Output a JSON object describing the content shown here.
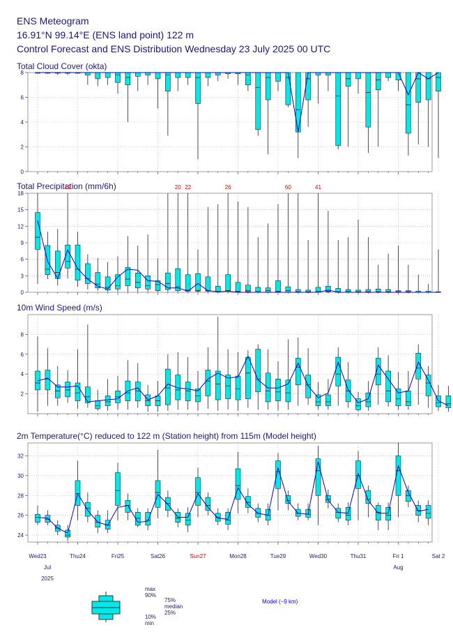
{
  "header": {
    "line1": "ENS Meteogram",
    "line2": "16.91°N 99.14°E (ENS land point) 122 m",
    "line3": "Control Forecast and ENS Distribution Wednesday 23 July 2025 00 UTC"
  },
  "colors": {
    "box": "#00e8e8",
    "line": "#0000cc",
    "text": "#1a1a6e",
    "sunday": "#e00000",
    "grid": "#999999"
  },
  "chart_data": [
    {
      "type": "boxplot",
      "title": "Total Cloud Cover (okta)",
      "ylim": [
        0,
        8
      ],
      "yticks": [
        0,
        2,
        4,
        6,
        8
      ],
      "boxes": [
        [
          7.9,
          8,
          8,
          8,
          8
        ],
        [
          7.9,
          8,
          8,
          8,
          8
        ],
        [
          7.8,
          8,
          8,
          8,
          8
        ],
        [
          7.8,
          8,
          8,
          8,
          8
        ],
        [
          7.9,
          8,
          8,
          8,
          8
        ],
        [
          7,
          7.8,
          8,
          8,
          8
        ],
        [
          6.9,
          7.5,
          8,
          8,
          8
        ],
        [
          7,
          7.6,
          8,
          8,
          8
        ],
        [
          6.3,
          7.2,
          7.8,
          8,
          8
        ],
        [
          4,
          7,
          7.6,
          8,
          8
        ],
        [
          6.5,
          7.7,
          8,
          8,
          8
        ],
        [
          7,
          7.8,
          8,
          8,
          8
        ],
        [
          5.1,
          7.5,
          8,
          8,
          8
        ],
        [
          2.9,
          6.5,
          7.8,
          8,
          8
        ],
        [
          6.5,
          7.6,
          8,
          8,
          8
        ],
        [
          7,
          7.6,
          8,
          8,
          8
        ],
        [
          1,
          5.5,
          7.6,
          8,
          8
        ],
        [
          6.9,
          7.6,
          8,
          8,
          8
        ],
        [
          7.3,
          7.8,
          8,
          8,
          8
        ],
        [
          7.5,
          7.9,
          8,
          8,
          8
        ],
        [
          7,
          7.9,
          8,
          8,
          8
        ],
        [
          6.5,
          7,
          7.8,
          8,
          8
        ],
        [
          2.9,
          3.4,
          6.8,
          8,
          8
        ],
        [
          1.4,
          5.8,
          7.6,
          8,
          8
        ],
        [
          6.5,
          7.3,
          8,
          8,
          8
        ],
        [
          5.2,
          5.4,
          7.6,
          8,
          8
        ],
        [
          1.1,
          3.2,
          5,
          8,
          8
        ],
        [
          3.6,
          5.8,
          7.5,
          8,
          8
        ],
        [
          5.5,
          7.8,
          8,
          8,
          8
        ],
        [
          6.5,
          7.8,
          8,
          8,
          8
        ],
        [
          1.8,
          2.1,
          6.1,
          8,
          8
        ],
        [
          2,
          6.9,
          7.5,
          8,
          8
        ],
        [
          6.3,
          7.5,
          8,
          8,
          8
        ],
        [
          1.5,
          3.6,
          6.4,
          8,
          8
        ],
        [
          2,
          6.6,
          7.4,
          8,
          8
        ],
        [
          7.3,
          7.6,
          8,
          8,
          8
        ],
        [
          6.5,
          7.4,
          8,
          8,
          8
        ],
        [
          1.3,
          3.1,
          5.4,
          8,
          8
        ],
        [
          2.2,
          5.6,
          7.5,
          8,
          8
        ],
        [
          2,
          5.8,
          7.5,
          8,
          8
        ],
        [
          1.1,
          6.5,
          7.6,
          8,
          8
        ]
      ],
      "control": [
        8,
        8,
        8,
        8,
        8,
        8,
        8,
        8,
        8,
        8,
        8,
        8,
        8,
        8,
        8,
        8,
        8,
        8,
        8,
        8,
        8,
        8,
        8,
        8,
        8,
        8,
        3.2,
        8,
        8,
        8,
        8,
        8,
        8,
        8,
        8,
        8,
        8,
        6.2,
        8,
        7.5,
        8
      ]
    },
    {
      "type": "boxplot",
      "title": "Total Precipitation (mm/6h)",
      "ylim": [
        0,
        18
      ],
      "yticks": [
        0,
        3,
        6,
        9,
        12,
        15,
        18
      ],
      "exceed_labels": [
        {
          "index": 3,
          "text": "19"
        },
        {
          "index": 14,
          "text": "20"
        },
        {
          "index": 15,
          "text": "22"
        },
        {
          "index": 19,
          "text": "26"
        },
        {
          "index": 25,
          "text": "60"
        },
        {
          "index": 28,
          "text": "41"
        }
      ],
      "boxes": [
        [
          1.5,
          7.8,
          10,
          14.5,
          18
        ],
        [
          2.4,
          3.2,
          4.2,
          8.5,
          11
        ],
        [
          1.2,
          2.5,
          3.6,
          7.5,
          11.5
        ],
        [
          2.5,
          4.4,
          5.6,
          8.6,
          18
        ],
        [
          1,
          2.2,
          4.2,
          8.6,
          11
        ],
        [
          0.5,
          1.6,
          2.5,
          5.2,
          6.9
        ],
        [
          0.3,
          0.8,
          1.5,
          3.6,
          6.2
        ],
        [
          0.1,
          0.4,
          0.9,
          2.8,
          5.5
        ],
        [
          0.1,
          0.6,
          1.2,
          3.2,
          6.5
        ],
        [
          0.1,
          1.2,
          2.4,
          4.5,
          10.2
        ],
        [
          0.1,
          0.8,
          1.8,
          3.5,
          8.5
        ],
        [
          0.1,
          0.6,
          1.2,
          3,
          10.5
        ],
        [
          0.1,
          0.3,
          1.4,
          2.1,
          6.2
        ],
        [
          0.1,
          0.5,
          1.6,
          3.5,
          18
        ],
        [
          0.1,
          0.3,
          1,
          4.3,
          18
        ],
        [
          0.1,
          0.2,
          0.4,
          3.2,
          18
        ],
        [
          0,
          0.2,
          0.3,
          3.4,
          7.8
        ],
        [
          0,
          0.2,
          0.3,
          2.8,
          15.5
        ],
        [
          0,
          0.1,
          0.2,
          1.1,
          16
        ],
        [
          0,
          0.2,
          0.3,
          3.2,
          18
        ],
        [
          0,
          0.1,
          0.2,
          1.8,
          16.5
        ],
        [
          0,
          0.1,
          0.3,
          1.3,
          15.5
        ],
        [
          0,
          0,
          0.2,
          0.9,
          10
        ],
        [
          0,
          0,
          0.3,
          0.8,
          12.5
        ],
        [
          0,
          0.1,
          0.2,
          2.1,
          16
        ],
        [
          0,
          0,
          0.3,
          1,
          18
        ],
        [
          0,
          0,
          0.1,
          0.5,
          18
        ],
        [
          0,
          0,
          0.1,
          0.4,
          9.5
        ],
        [
          0,
          0,
          0.2,
          0.9,
          18
        ],
        [
          0,
          0.1,
          0.2,
          1.1,
          14.8
        ],
        [
          0,
          0,
          0.1,
          0.7,
          9.5
        ],
        [
          0,
          0,
          0.2,
          0.5,
          10
        ],
        [
          0,
          0,
          0.1,
          0.4,
          13.2
        ],
        [
          0,
          0,
          0.1,
          0.5,
          10
        ],
        [
          0,
          0,
          0.1,
          0.6,
          5
        ],
        [
          0,
          0,
          0.1,
          0.5,
          7
        ],
        [
          0,
          0,
          0.1,
          0.3,
          8.5
        ],
        [
          0,
          0,
          0.1,
          0.3,
          5
        ],
        [
          0,
          0,
          0,
          0.2,
          3.2
        ],
        [
          0,
          0,
          0,
          0.2,
          1.5
        ],
        [
          0,
          0,
          0,
          0.1,
          7.8
        ]
      ],
      "control": [
        13,
        5.6,
        2.5,
        7.7,
        4.3,
        2.4,
        1.1,
        0.6,
        2.8,
        4.2,
        4,
        2.1,
        2,
        0.8,
        0.8,
        0.2,
        1.6,
        0.3,
        0.1,
        0.2,
        0,
        0,
        0,
        0,
        0,
        0,
        0,
        0,
        0,
        0.4,
        0,
        0,
        0,
        0,
        0,
        0,
        0,
        0,
        0,
        0,
        0
      ]
    },
    {
      "type": "boxplot",
      "title": "10m Wind Speed (m/s)",
      "ylim": [
        0,
        10
      ],
      "yticks": [
        2,
        4,
        6,
        8
      ],
      "boxes": [
        [
          0.2,
          2.4,
          3.1,
          4.3,
          7.8
        ],
        [
          0.8,
          2.4,
          3.5,
          4.4,
          6.6
        ],
        [
          0.8,
          1.6,
          2.3,
          2.9,
          4.8
        ],
        [
          1.1,
          1.7,
          2.4,
          3.2,
          4.4
        ],
        [
          0.5,
          1.3,
          2.1,
          3.1,
          6.5
        ],
        [
          0.6,
          1.1,
          1.7,
          2.7,
          9
        ],
        [
          0.3,
          0.5,
          0.8,
          1.3,
          2.4
        ],
        [
          0.3,
          0.8,
          1.2,
          1.8,
          3.5
        ],
        [
          0.4,
          1.1,
          1.7,
          2.3,
          3.8
        ],
        [
          0.4,
          1.3,
          2.1,
          3.3,
          5.4
        ],
        [
          0.6,
          1.3,
          2.3,
          3.2,
          5.1
        ],
        [
          0.2,
          0.8,
          1.3,
          1.9,
          2.9
        ],
        [
          0.2,
          0.8,
          1.3,
          1.8,
          3.3
        ],
        [
          0.3,
          0.9,
          2.6,
          4.5,
          6
        ],
        [
          0.4,
          1.4,
          2.4,
          3.9,
          6.2
        ],
        [
          0.4,
          1.3,
          2.3,
          3.2,
          5.7
        ],
        [
          0.3,
          1.2,
          1.8,
          2.5,
          4.3
        ],
        [
          0.5,
          1.8,
          3.3,
          4.4,
          6.7
        ],
        [
          0.3,
          1.4,
          3,
          4.3,
          9.8
        ],
        [
          0.4,
          1.5,
          2.8,
          3.9,
          6.5
        ],
        [
          0.3,
          1.4,
          2.5,
          3.8,
          6.2
        ],
        [
          0.6,
          1.5,
          4.1,
          5.7,
          6.4
        ],
        [
          0.4,
          2.2,
          3.5,
          6.5,
          7
        ],
        [
          0.4,
          1.2,
          2.3,
          4.1,
          6.5
        ],
        [
          0.3,
          1.3,
          2.2,
          3.5,
          5.3
        ],
        [
          0.4,
          1.2,
          2.1,
          3.4,
          7.5
        ],
        [
          0.8,
          2.9,
          4.7,
          5.6,
          7.7
        ],
        [
          0.9,
          1.6,
          2.9,
          3.9,
          6.6
        ],
        [
          0.4,
          0.8,
          1.2,
          1.9,
          3.2
        ],
        [
          0.4,
          0.8,
          1.2,
          1.9,
          3.5
        ],
        [
          0.8,
          2.8,
          4,
          5.7,
          6.7
        ],
        [
          0.6,
          1.2,
          2.3,
          3.4,
          5.2
        ],
        [
          0.2,
          0.4,
          0.8,
          1.5,
          2.2
        ],
        [
          0.3,
          0.7,
          1.2,
          2.1,
          3.3
        ],
        [
          0.9,
          2.9,
          4,
          5.6,
          6.7
        ],
        [
          0.7,
          1.2,
          2.3,
          4.3,
          5.9
        ],
        [
          0.4,
          0.8,
          1.5,
          2.5,
          4.2
        ],
        [
          0.4,
          0.8,
          1.2,
          2.3,
          4.3
        ],
        [
          0.9,
          3.5,
          4.6,
          6.1,
          7
        ],
        [
          0.6,
          1.8,
          3.1,
          3.9,
          4.8
        ],
        [
          0.3,
          0.7,
          1.1,
          1.8,
          2.9
        ],
        [
          0.2,
          0.6,
          1,
          1.8,
          2.8
        ]
      ],
      "control": [
        3.3,
        3.6,
        2.7,
        2.7,
        2.8,
        1.2,
        1.3,
        1.4,
        1.5,
        2.3,
        2.6,
        1.4,
        1.8,
        3,
        2.6,
        2.5,
        2.3,
        3.5,
        4.1,
        3.6,
        3.7,
        5.8,
        3.4,
        2.6,
        2.6,
        3,
        5.1,
        2.8,
        1.6,
        2.1,
        5.2,
        2.4,
        1.1,
        1.5,
        4.9,
        3.5,
        2.1,
        2.3,
        5.2,
        3.4,
        1.3,
        0.8
      ]
    },
    {
      "type": "boxplot",
      "title": "2m Temperature(°C) reduced to 122 m (Station height) from 115m (Model height)",
      "ylim": [
        23.3,
        33.3
      ],
      "yticks": [
        24,
        26,
        28,
        30,
        32
      ],
      "boxes": [
        [
          25,
          25.3,
          25.8,
          26.1,
          27
        ],
        [
          25,
          25.3,
          25.6,
          26,
          26.5
        ],
        [
          24,
          24.4,
          24.7,
          25,
          25.5
        ],
        [
          23.4,
          23.8,
          24,
          24.5,
          25
        ],
        [
          25.5,
          27,
          28.2,
          29.5,
          31.5
        ],
        [
          25.3,
          25.9,
          26.7,
          27.3,
          28.3
        ],
        [
          24.2,
          24.8,
          25.3,
          26,
          26.5
        ],
        [
          24.2,
          24.6,
          25,
          25.5,
          26.5
        ],
        [
          25.5,
          27,
          28.5,
          30.3,
          31.3
        ],
        [
          25.5,
          26.3,
          27,
          27.5,
          28.2
        ],
        [
          24.8,
          25,
          25.7,
          26.3,
          26.7
        ],
        [
          24.5,
          25,
          25.5,
          26.3,
          26.7
        ],
        [
          25.7,
          26.8,
          28.3,
          29.5,
          32.6
        ],
        [
          25.8,
          26.5,
          27.2,
          27.8,
          28.5
        ],
        [
          24.8,
          25.3,
          25.7,
          26.3,
          26.7
        ],
        [
          24.3,
          25,
          25.5,
          26.2,
          26.8
        ],
        [
          25.8,
          27,
          28.3,
          29.8,
          30.8
        ],
        [
          26,
          26.5,
          27,
          27.8,
          28.3
        ],
        [
          25,
          25.4,
          25.8,
          26.2,
          26.7
        ],
        [
          24.5,
          25.1,
          25.5,
          26.3,
          26.7
        ],
        [
          26.2,
          27.6,
          29,
          30.7,
          32.4
        ],
        [
          26.2,
          26.8,
          27.3,
          27.9,
          28.7
        ],
        [
          25.3,
          25.8,
          26.2,
          26.7,
          27.2
        ],
        [
          25,
          25.5,
          26,
          26.6,
          27.2
        ],
        [
          26.5,
          28.7,
          30.4,
          31.5,
          32.3
        ],
        [
          26.5,
          27.2,
          27.5,
          28,
          28.5
        ],
        [
          25.5,
          25.9,
          26.2,
          26.6,
          27.2
        ],
        [
          25.5,
          25.8,
          26.1,
          26.6,
          27.2
        ],
        [
          25,
          28,
          30.5,
          31.7,
          33
        ],
        [
          26.7,
          27.3,
          27.6,
          28,
          28.6
        ],
        [
          25.3,
          25.7,
          26.3,
          26.7,
          27.2
        ],
        [
          25,
          25.5,
          26,
          26.8,
          27.3
        ],
        [
          25.5,
          28.7,
          30,
          31.5,
          32.5
        ],
        [
          25.8,
          27.2,
          27.6,
          28.5,
          29
        ],
        [
          24.5,
          25.5,
          26.3,
          27,
          27.3
        ],
        [
          24.5,
          25.5,
          26,
          26.8,
          27.3
        ],
        [
          25.8,
          28,
          30.5,
          32,
          33.3
        ],
        [
          26.8,
          27.4,
          28,
          28.5,
          29
        ],
        [
          25.3,
          26,
          26.5,
          27,
          27.5
        ],
        [
          25,
          25.7,
          26.2,
          27,
          27.5
        ]
      ],
      "control": [
        25.8,
        25.7,
        24.7,
        24.2,
        28.2,
        26.5,
        25.3,
        25,
        26.8,
        27,
        25.3,
        25.4,
        28.1,
        27.1,
        25.8,
        25.8,
        28.2,
        26.8,
        25.7,
        25.6,
        28.8,
        27.1,
        26.2,
        26,
        30.8,
        27.4,
        26.2,
        26.1,
        31.4,
        27.5,
        26.3,
        26.2,
        30.2,
        27.5,
        26.2,
        26.2,
        31,
        28.3,
        26.4,
        26.6
      ]
    }
  ],
  "x_axis": {
    "days": [
      "Wed23",
      "Thu24",
      "Fri25",
      "Sat26",
      "Sun27",
      "Mon28",
      "Tue29",
      "Wed30",
      "Thu31",
      "Fri 1",
      "Sat 2"
    ],
    "sunday_index": 4,
    "month1": "Jul",
    "year": "2025",
    "month2": "Aug",
    "month2_day_index": 9
  },
  "legend": {
    "max": "max",
    "p90": "90%",
    "p75": "75%",
    "median": "median",
    "p25": "25%",
    "p10": "10%",
    "min": "min",
    "model": "Model (~9 km)"
  }
}
